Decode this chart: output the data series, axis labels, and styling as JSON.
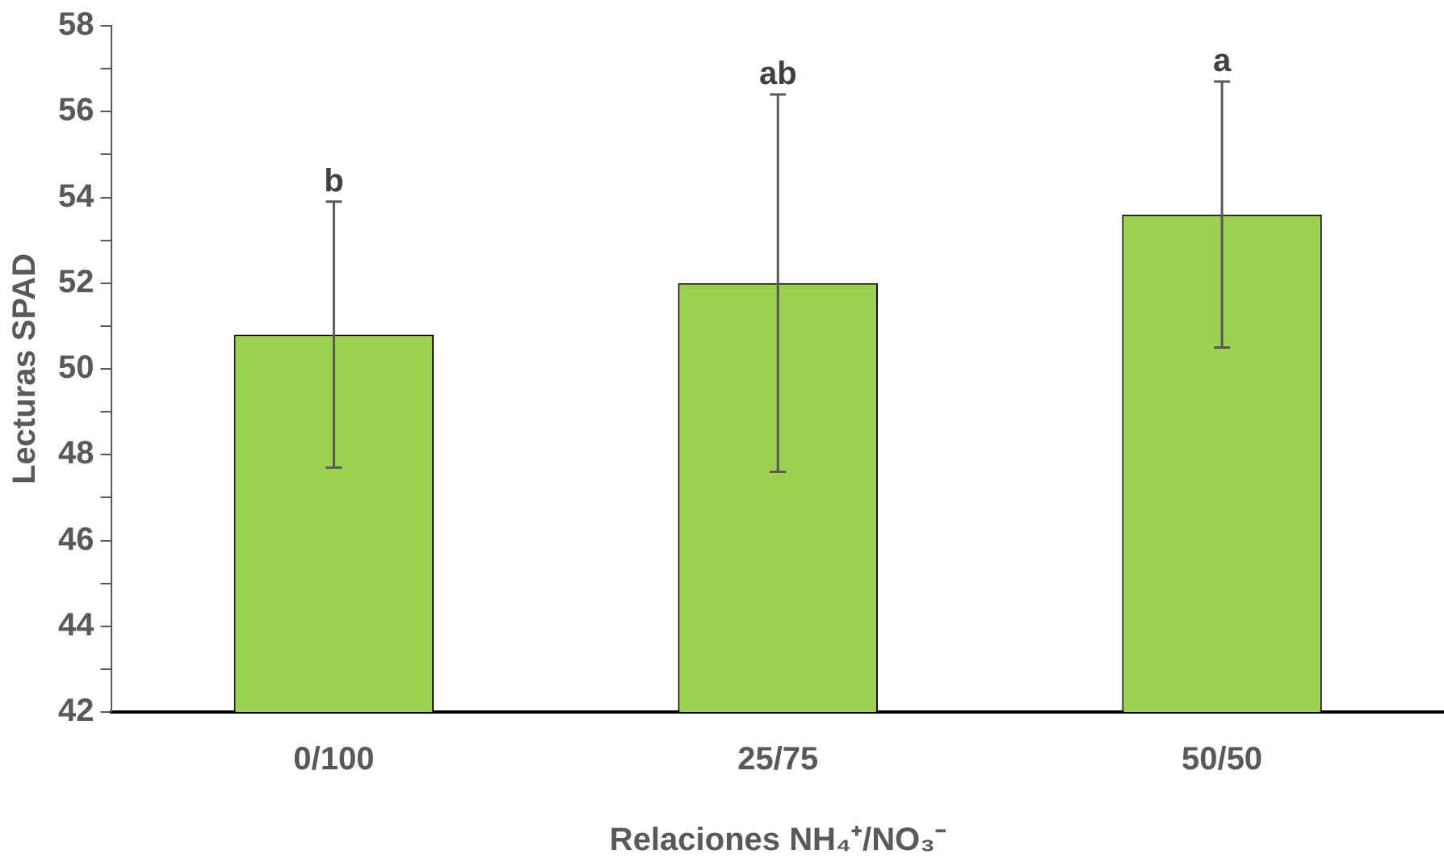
{
  "chart_data": {
    "type": "bar",
    "xlabel": "Relaciones NH₄⁺/NO₃⁻",
    "ylabel": "Lecturas SPAD",
    "categories": [
      "0/100",
      "25/75",
      "50/50"
    ],
    "values": [
      50.8,
      52.0,
      53.6
    ],
    "errors": [
      3.1,
      4.4,
      3.1
    ],
    "color": "#9bd050",
    "ylim": [
      42,
      58
    ],
    "yticks": [
      42,
      {
        "value": 43,
        "label": null
      },
      44,
      {
        "value": 45,
        "label": null
      },
      46,
      {
        "value": 47,
        "label": null
      },
      48,
      {
        "value": 49,
        "label": null
      },
      50,
      {
        "value": 51,
        "label": null
      },
      52,
      {
        "value": 53,
        "label": null
      },
      54,
      {
        "value": 55,
        "label": null
      },
      56,
      {
        "value": 57,
        "label": null
      },
      58
    ],
    "grid": false,
    "legend": false,
    "annotations": [
      {
        "text": "b",
        "x": "0/100",
        "y": 53.9
      },
      {
        "text": "ab",
        "x": "25/75",
        "y": 56.4
      },
      {
        "text": "a",
        "x": "50/50",
        "y": 56.7
      }
    ]
  }
}
